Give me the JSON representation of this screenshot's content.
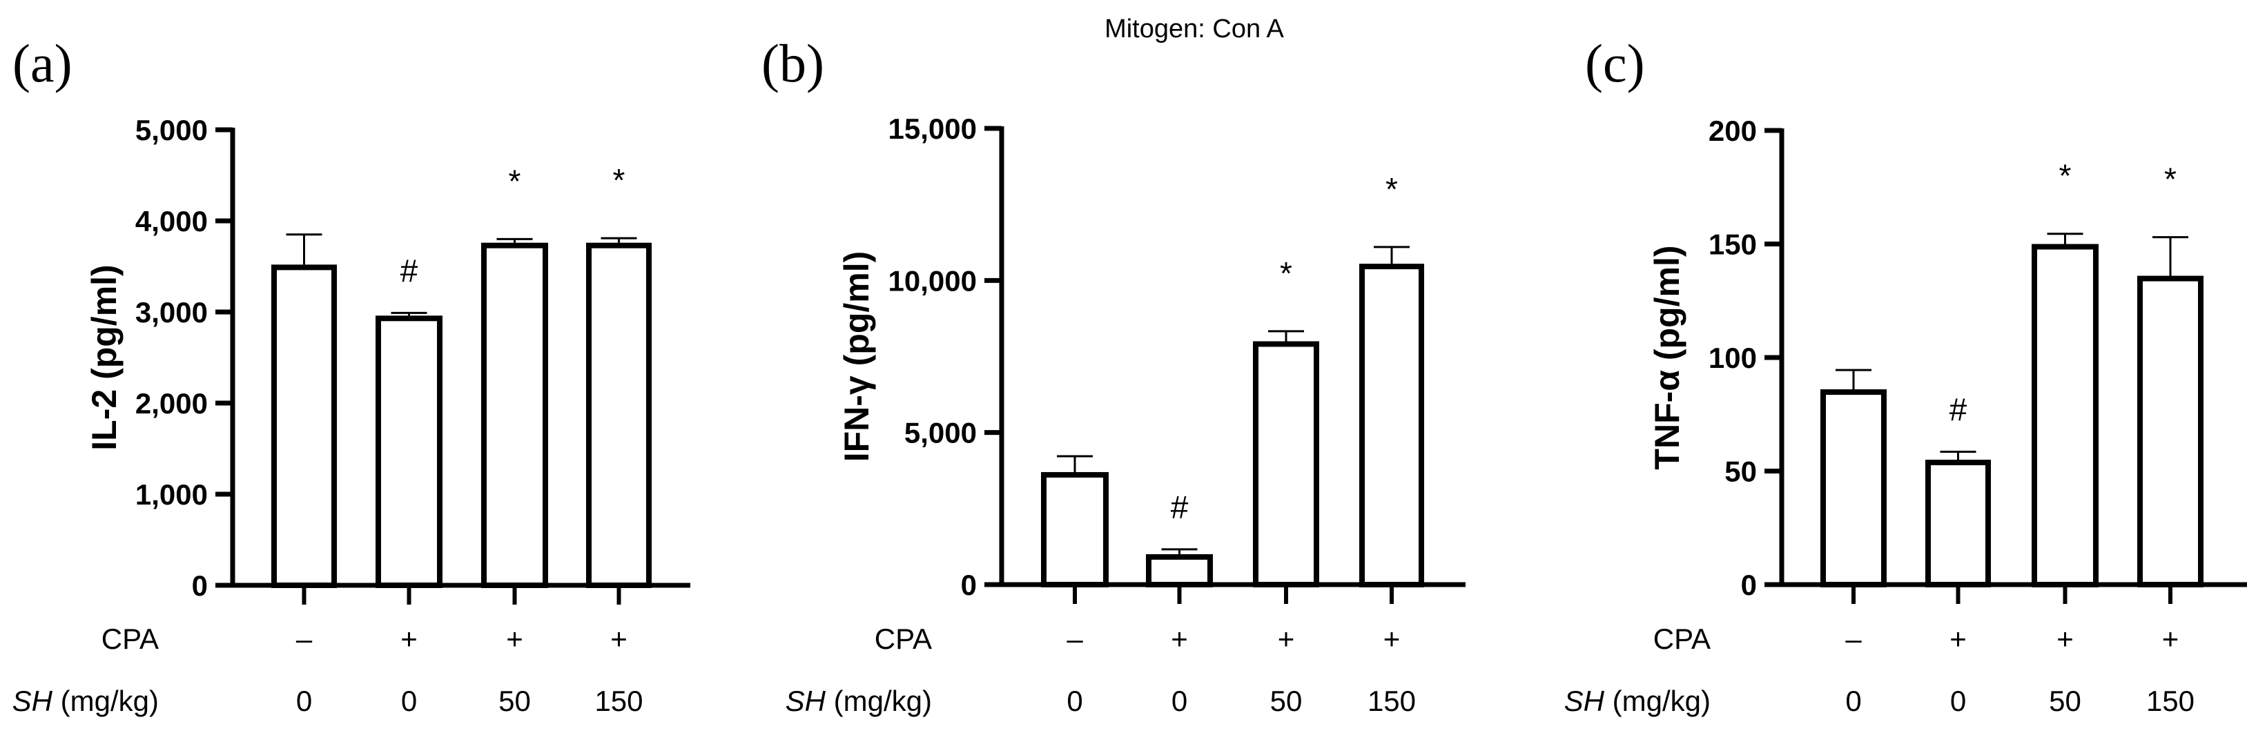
{
  "title": "Mitogen: Con A",
  "row_labels": {
    "cpa": "CPA",
    "sh_italic": "SH",
    "sh_unit": " (mg/kg)"
  },
  "chart_data": [
    {
      "panel_label": "(a)",
      "type": "bar",
      "ylabel": "IL-2 (pg/ml)",
      "ylim": [
        0,
        5000
      ],
      "yticks": [
        0,
        1000,
        2000,
        3000,
        4000,
        5000
      ],
      "ytick_labels": [
        "0",
        "1,000",
        "2,000",
        "3,000",
        "4,000",
        "5,000"
      ],
      "cpa": [
        "–",
        "+",
        "+",
        "+"
      ],
      "sh": [
        "0",
        "0",
        "50",
        "150"
      ],
      "values": [
        3520,
        2960,
        3760,
        3760
      ],
      "errors": [
        330,
        30,
        40,
        50
      ],
      "significance": [
        "",
        "#",
        "*",
        "*"
      ]
    },
    {
      "panel_label": "(b)",
      "type": "bar",
      "ylabel": "IFN-γ (pg/ml)",
      "ylim": [
        0,
        15000
      ],
      "yticks": [
        0,
        5000,
        10000,
        15000
      ],
      "ytick_labels": [
        "0",
        "5,000",
        "10,000",
        "15,000"
      ],
      "cpa": [
        "–",
        "+",
        "+",
        "+"
      ],
      "sh": [
        "0",
        "0",
        "50",
        "150"
      ],
      "values": [
        3700,
        1000,
        8000,
        10550
      ],
      "errors": [
        520,
        160,
        330,
        550
      ],
      "significance": [
        "",
        "#",
        "*",
        "*"
      ]
    },
    {
      "panel_label": "(c)",
      "type": "bar",
      "ylabel": "TNF-α (pg/ml)",
      "ylim": [
        0,
        200
      ],
      "yticks": [
        0,
        50,
        100,
        150,
        200
      ],
      "ytick_labels": [
        "0",
        "50",
        "100",
        "150",
        "200"
      ],
      "cpa": [
        "–",
        "+",
        "+",
        "+"
      ],
      "sh": [
        "0",
        "0",
        "50",
        "150"
      ],
      "values": [
        86,
        55,
        150,
        136
      ],
      "errors": [
        8.5,
        3.5,
        4.5,
        17
      ],
      "significance": [
        "",
        "#",
        "*",
        "*"
      ]
    }
  ]
}
